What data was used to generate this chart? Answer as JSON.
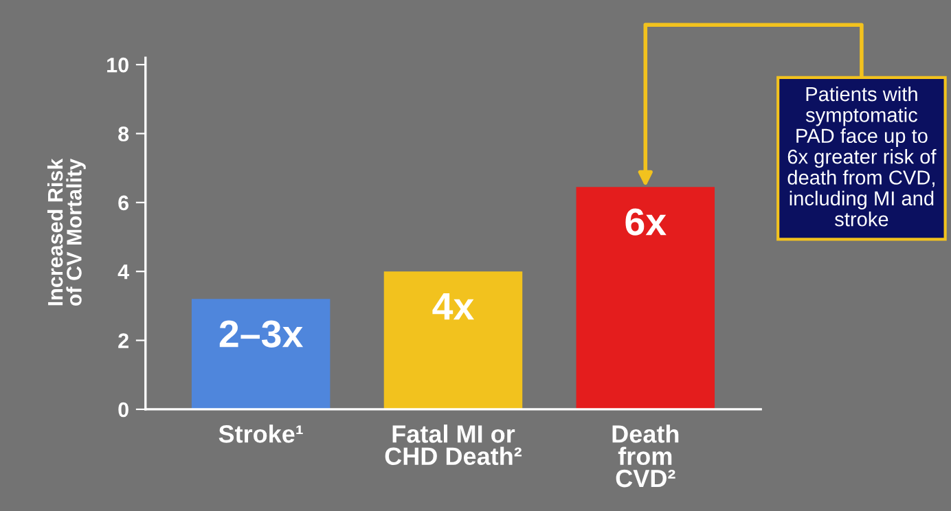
{
  "chart_data": {
    "type": "bar",
    "ylabel": "Increased Risk\nof CV Mortality",
    "categories": [
      "Stroke¹",
      "Fatal MI or\nCHD Death²",
      "Death\nfrom\nCVD²"
    ],
    "values": [
      3.2,
      4.0,
      6.45
    ],
    "colors": [
      "#4f86dc",
      "#f2c21e",
      "#e41d1d"
    ],
    "value_labels": [
      "2–3x",
      "4x",
      "6x"
    ],
    "ylim": [
      0,
      10.2
    ],
    "yticks": [
      0,
      2,
      4,
      6,
      8,
      10
    ],
    "grid": false,
    "legend": false,
    "annotations": [
      {
        "text": "Patients with\nsymptomatic\nPAD face up to\n6x greater risk of\ndeath from CVD,\nincluding MI and\nstroke",
        "x": "Death\nfrom\nCVD²",
        "y": 6.45
      }
    ]
  }
}
